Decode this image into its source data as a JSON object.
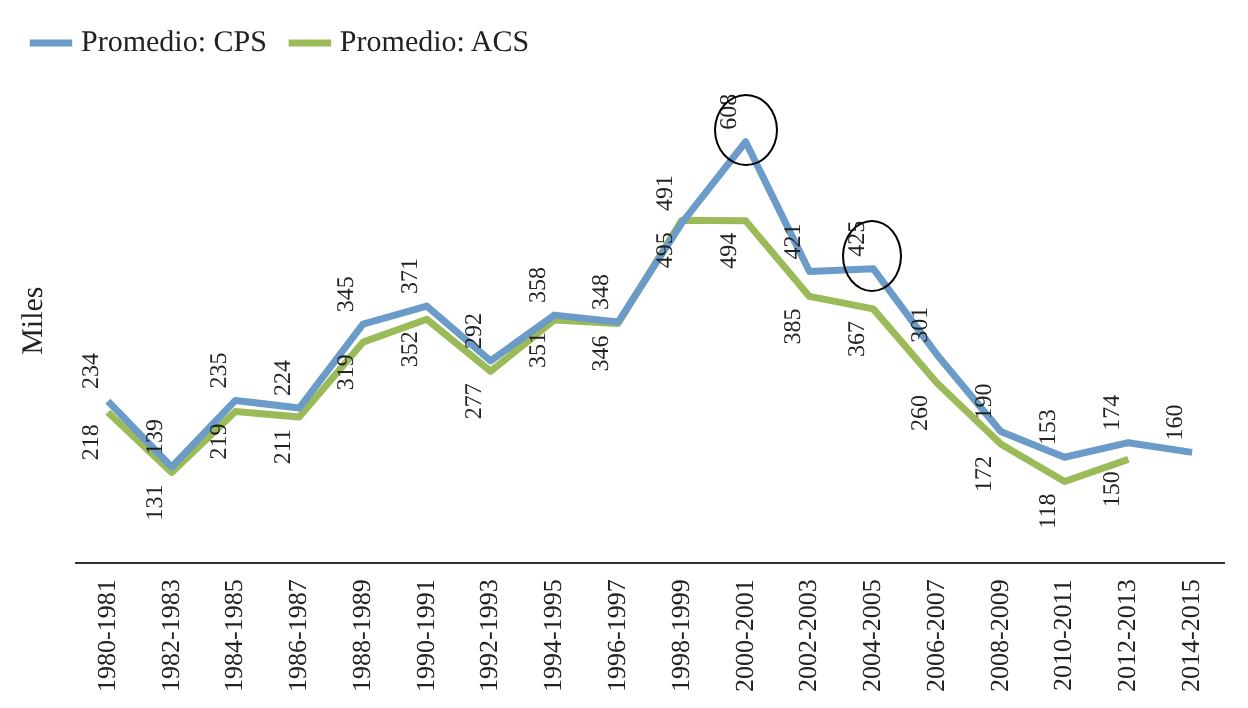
{
  "chart_data": {
    "type": "line",
    "ylabel": "Miles",
    "categories": [
      "1980-1981",
      "1982-1983",
      "1984-1985",
      "1986-1987",
      "1988-1989",
      "1990-1991",
      "1992-1993",
      "1994-1995",
      "1996-1997",
      "1998-1999",
      "2000-2001",
      "2002-2003",
      "2004-2005",
      "2006-2007",
      "2008-2009",
      "2010-2011",
      "2012-2013",
      "2014-2015"
    ],
    "series": [
      {
        "name": "Promedio: CPS",
        "color": "#6b9bc8",
        "values": [
          234,
          139,
          235,
          224,
          345,
          371,
          292,
          358,
          348,
          491,
          608,
          421,
          425,
          301,
          190,
          153,
          174,
          160
        ]
      },
      {
        "name": "Promedio: ACS",
        "color": "#9bbb59",
        "values": [
          218,
          131,
          219,
          211,
          319,
          352,
          277,
          351,
          346,
          495,
          494,
          385,
          367,
          260,
          172,
          118,
          150,
          null
        ]
      }
    ],
    "data_labels": true,
    "legend": "top left",
    "grid": false,
    "marker": "none",
    "line_style": "solid"
  }
}
